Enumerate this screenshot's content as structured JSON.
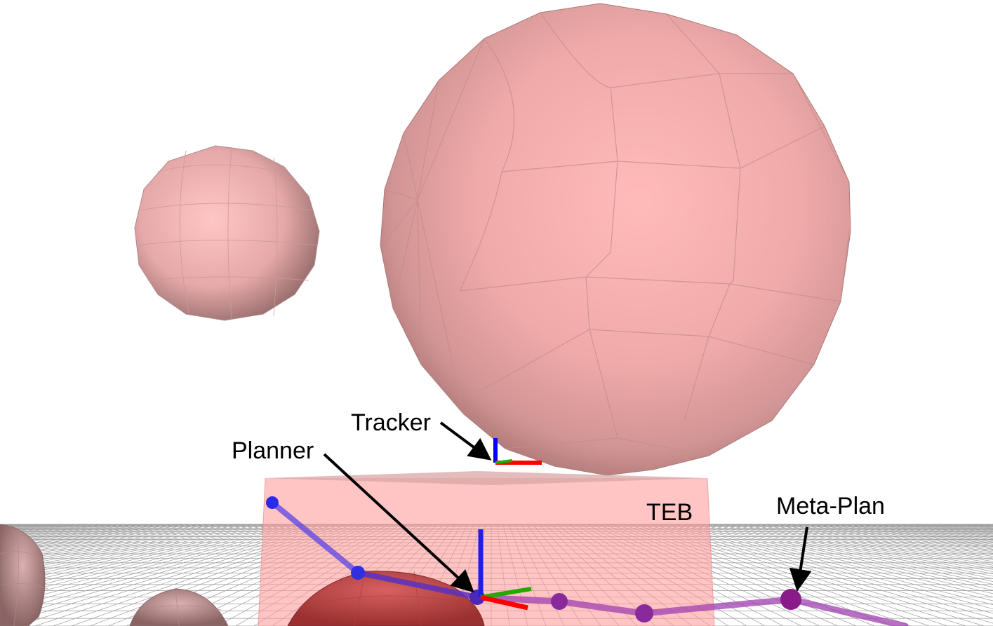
{
  "labels": {
    "tracker": "Tracker",
    "planner": "Planner",
    "teb": "TEB",
    "meta_plan": "Meta-Plan"
  },
  "colors": {
    "obstacle_pink": "#f2b1b1",
    "obstacle_red": "#c04848",
    "teb_region": "#ff9a9a",
    "path_blue": "#3030e0",
    "path_purple": "#9a3aa8",
    "axis_x": "#ff0000",
    "axis_y": "#22aa00",
    "axis_z": "#0000ff"
  }
}
